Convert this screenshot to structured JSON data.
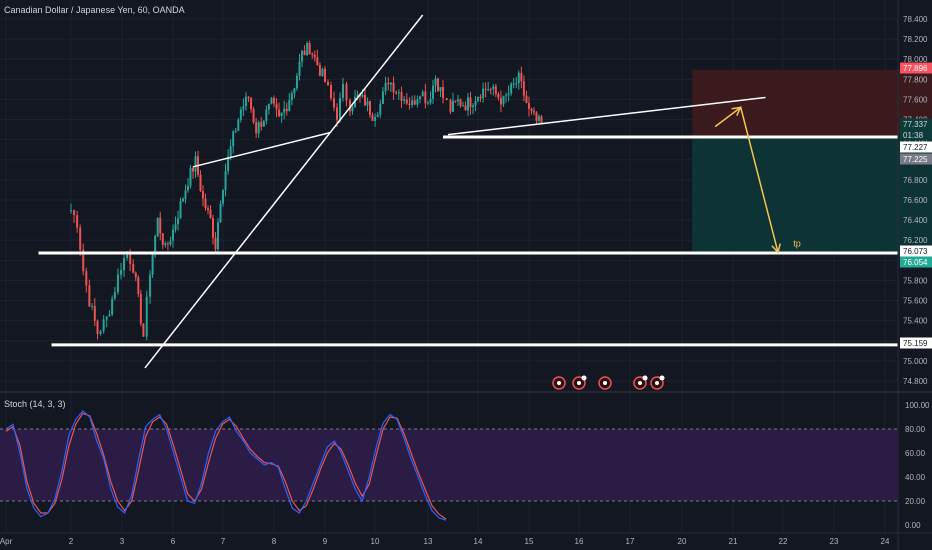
{
  "header": {
    "title": "Canadian Dollar / Japanese Yen, 60, OANDA"
  },
  "colors": {
    "background": "#131722",
    "grid": "#1e222d",
    "candle_up": "#26a69a",
    "candle_down": "#ef5350",
    "stop_zone": "#3b1a1e",
    "target_zone": "#0d3335",
    "drawing": "#ffffff",
    "arrow": "#f5c451",
    "stoch_k": "#2962ff",
    "stoch_d": "#ef5350",
    "stoch_band": "#2a1c44"
  },
  "chart_data": {
    "type": "candlestick",
    "symbol": "Canadian Dollar / Japanese Yen",
    "timeframe": "60",
    "source": "OANDA",
    "price_axis": {
      "ticks": [
        "78.400",
        "78.200",
        "78.000",
        "77.800",
        "77.600",
        "77.400",
        "77.200",
        "77.000",
        "76.800",
        "76.600",
        "76.400",
        "76.200",
        "76.000",
        "75.800",
        "75.600",
        "75.400",
        "75.200",
        "75.000",
        "74.800"
      ],
      "range": [
        74.72,
        78.52
      ]
    },
    "time_axis": {
      "ticks": [
        "Apr",
        "2",
        "3",
        "6",
        "7",
        "8",
        "9",
        "10",
        "13",
        "14",
        "15",
        "16",
        "17",
        "20",
        "21",
        "22",
        "23",
        "24"
      ]
    },
    "price_labels": [
      {
        "text": "77.896",
        "value": 77.896,
        "kind": "stop"
      },
      {
        "text": "77.337",
        "value": 77.337,
        "kind": "current"
      },
      {
        "text": "01:38",
        "value": 77.31,
        "kind": "countdown"
      },
      {
        "text": "77.227",
        "value": 77.227,
        "kind": "level"
      },
      {
        "text": "77.225",
        "value": 77.225,
        "kind": "entry"
      },
      {
        "text": "76.073",
        "value": 76.073,
        "kind": "level"
      },
      {
        "text": "76.054",
        "value": 76.054,
        "kind": "target"
      },
      {
        "text": "75.159",
        "value": 75.159,
        "kind": "level"
      }
    ],
    "horizontal_levels": [
      77.227,
      76.073,
      75.159
    ],
    "trendlines": [
      {
        "from": [
          2.45,
          74.93
        ],
        "to": [
          7.9,
          78.44
        ]
      },
      {
        "from": [
          3.4,
          76.93
        ],
        "to": [
          6.1,
          77.27
        ]
      },
      {
        "from": [
          8.4,
          77.25
        ],
        "to": [
          14.65,
          77.62
        ]
      }
    ],
    "position": {
      "type": "short",
      "start": 13.2,
      "end": 18.8,
      "entry": 77.225,
      "stop": 77.896,
      "target": 76.054
    },
    "annotation": {
      "text": "tp",
      "x": 15.2,
      "y": 76.14
    },
    "arrows": [
      {
        "from": [
          13.65,
          77.33
        ],
        "to": [
          14.15,
          77.52
        ]
      },
      {
        "from": [
          14.15,
          77.53
        ],
        "to": [
          14.9,
          76.08
        ]
      }
    ],
    "close_path": [
      [
        1.0,
        76.5
      ],
      [
        1.12,
        76.38
      ],
      [
        1.24,
        75.9
      ],
      [
        1.36,
        75.6
      ],
      [
        1.52,
        75.28
      ],
      [
        1.7,
        75.42
      ],
      [
        1.86,
        75.72
      ],
      [
        1.98,
        75.95
      ],
      [
        2.1,
        76.08
      ],
      [
        2.22,
        75.94
      ],
      [
        2.32,
        75.6
      ],
      [
        2.42,
        75.25
      ],
      [
        2.55,
        75.9
      ],
      [
        2.7,
        76.4
      ],
      [
        2.85,
        76.1
      ],
      [
        3.0,
        76.3
      ],
      [
        3.15,
        76.55
      ],
      [
        3.3,
        76.8
      ],
      [
        3.45,
        76.98
      ],
      [
        3.6,
        76.6
      ],
      [
        3.75,
        76.4
      ],
      [
        3.85,
        76.15
      ],
      [
        3.95,
        76.62
      ],
      [
        4.05,
        76.9
      ],
      [
        4.2,
        77.22
      ],
      [
        4.35,
        77.5
      ],
      [
        4.5,
        77.62
      ],
      [
        4.65,
        77.3
      ],
      [
        4.8,
        77.42
      ],
      [
        4.95,
        77.55
      ],
      [
        5.1,
        77.4
      ],
      [
        5.25,
        77.55
      ],
      [
        5.4,
        77.75
      ],
      [
        5.55,
        78.05
      ],
      [
        5.7,
        78.12
      ],
      [
        5.85,
        77.95
      ],
      [
        6.0,
        77.78
      ],
      [
        6.12,
        77.6
      ],
      [
        6.24,
        77.45
      ],
      [
        6.36,
        77.7
      ],
      [
        6.5,
        77.55
      ],
      [
        6.65,
        77.62
      ],
      [
        6.8,
        77.58
      ],
      [
        6.95,
        77.45
      ],
      [
        7.1,
        77.55
      ],
      [
        7.25,
        77.8
      ],
      [
        7.4,
        77.7
      ],
      [
        7.55,
        77.62
      ],
      [
        7.7,
        77.55
      ],
      [
        7.85,
        77.7
      ],
      [
        8.0,
        77.58
      ],
      [
        8.15,
        77.82
      ],
      [
        8.3,
        77.62
      ],
      [
        8.45,
        77.5
      ],
      [
        8.6,
        77.58
      ],
      [
        8.75,
        77.55
      ],
      [
        8.9,
        77.6
      ],
      [
        9.05,
        77.68
      ],
      [
        9.2,
        77.72
      ],
      [
        9.35,
        77.65
      ],
      [
        9.5,
        77.58
      ],
      [
        9.65,
        77.7
      ],
      [
        9.8,
        77.8
      ],
      [
        9.9,
        77.65
      ],
      [
        10.0,
        77.48
      ],
      [
        10.15,
        77.38
      ],
      [
        10.3,
        77.33
      ]
    ],
    "stochastic": {
      "label": "Stoch (14, 3, 3)",
      "ticks": [
        "100.00",
        "80.00",
        "60.00",
        "40.00",
        "20.00",
        "0.00"
      ],
      "band": [
        20,
        80
      ],
      "k": [
        80,
        84,
        60,
        30,
        14,
        7,
        10,
        22,
        45,
        75,
        88,
        95,
        90,
        70,
        55,
        30,
        15,
        10,
        25,
        55,
        82,
        88,
        92,
        80,
        60,
        40,
        20,
        18,
        35,
        60,
        78,
        86,
        90,
        78,
        70,
        60,
        55,
        50,
        52,
        48,
        30,
        14,
        10,
        20,
        35,
        50,
        65,
        70,
        60,
        45,
        30,
        20,
        40,
        65,
        85,
        92,
        88,
        72,
        55,
        40,
        25,
        12,
        6,
        4
      ],
      "d": [
        78,
        82,
        66,
        36,
        18,
        10,
        10,
        18,
        38,
        66,
        84,
        93,
        91,
        76,
        58,
        36,
        20,
        12,
        20,
        46,
        74,
        86,
        90,
        84,
        66,
        46,
        26,
        20,
        30,
        52,
        72,
        84,
        88,
        82,
        72,
        63,
        57,
        52,
        51,
        49,
        36,
        20,
        12,
        16,
        30,
        46,
        60,
        68,
        63,
        50,
        35,
        24,
        34,
        58,
        80,
        90,
        89,
        76,
        60,
        44,
        30,
        16,
        9,
        5
      ]
    }
  }
}
